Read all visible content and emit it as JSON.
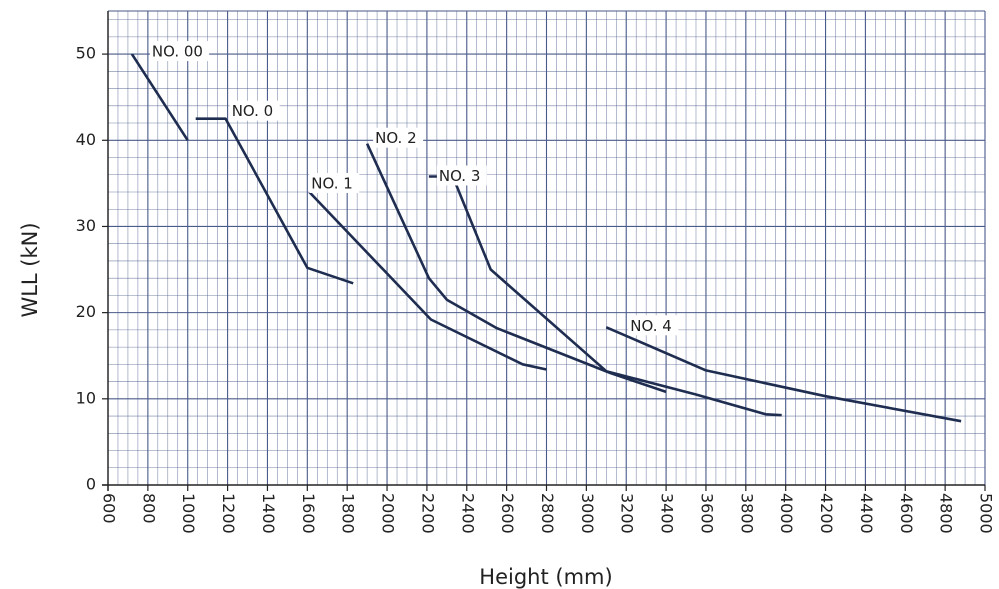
{
  "chart_data": {
    "type": "line",
    "title": "",
    "xlabel": "Height (mm)",
    "ylabel": "WLL (kN)",
    "xlim": [
      600,
      5000
    ],
    "ylim": [
      0,
      55
    ],
    "x_ticks": [
      600,
      800,
      1000,
      1200,
      1400,
      1600,
      1800,
      2000,
      2200,
      2400,
      2600,
      2800,
      3000,
      3200,
      3400,
      3600,
      3800,
      4000,
      4200,
      4400,
      4600,
      4800,
      5000
    ],
    "x_tick_labels": [
      "600",
      "800",
      "1000",
      "1200",
      "1400",
      "1600",
      "1800",
      "2000",
      "2200",
      "2400",
      "2600",
      "2800",
      "3000",
      "3200",
      "3400",
      "3600",
      "3800",
      "4000",
      "4200",
      "4400",
      "4600",
      "4800",
      "5000"
    ],
    "y_ticks": [
      0,
      10,
      20,
      30,
      40,
      50
    ],
    "y_tick_labels": [
      "0",
      "10",
      "20",
      "30",
      "40",
      "50"
    ],
    "grid": true,
    "minor_grid": {
      "x_step": 50,
      "y_step": 2
    },
    "line_color": "#1f2d50",
    "grid_color": "#4a5a8a",
    "series": [
      {
        "name": "NO. 00",
        "points": [
          [
            720,
            50
          ],
          [
            1000,
            40
          ]
        ]
      },
      {
        "name": "NO. 0",
        "points": [
          [
            1040,
            42.5
          ],
          [
            1190,
            42.5
          ],
          [
            1600,
            25.2
          ],
          [
            1830,
            23.4
          ]
        ]
      },
      {
        "name": "NO. 1",
        "points": [
          [
            1610,
            34
          ],
          [
            2220,
            19.2
          ],
          [
            2680,
            14
          ],
          [
            2800,
            13.4
          ]
        ]
      },
      {
        "name": "NO. 2",
        "points": [
          [
            1900,
            39.6
          ],
          [
            2210,
            24
          ],
          [
            2300,
            21.5
          ],
          [
            2550,
            18.2
          ],
          [
            3120,
            13
          ],
          [
            3400,
            10.8
          ]
        ]
      },
      {
        "name": "NO. 3",
        "points": [
          [
            2210,
            35.8
          ],
          [
            2330,
            35.8
          ],
          [
            2520,
            25
          ],
          [
            3100,
            13.2
          ],
          [
            3550,
            10.5
          ],
          [
            3900,
            8.2
          ],
          [
            3980,
            8.1
          ]
        ]
      },
      {
        "name": "NO. 4",
        "points": [
          [
            3100,
            18.3
          ],
          [
            3600,
            13.3
          ],
          [
            4200,
            10.3
          ],
          [
            4880,
            7.4
          ]
        ]
      }
    ]
  }
}
